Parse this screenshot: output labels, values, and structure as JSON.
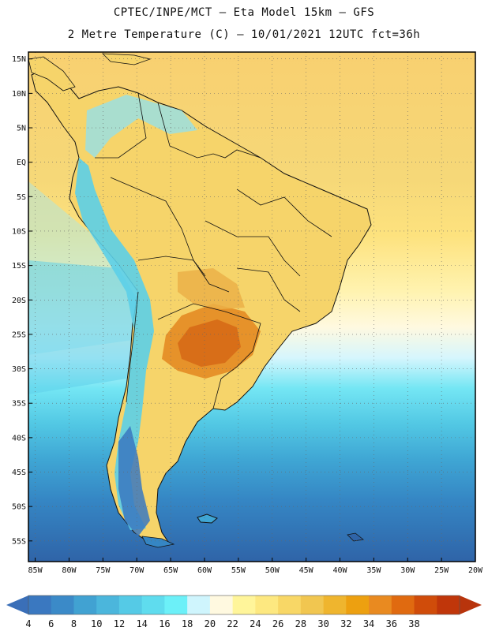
{
  "title": {
    "line1": "CPTEC/INPE/MCT –  Eta Model 15km – GFS",
    "line2": "2 Metre Temperature (C) – 10/01/2021 12UTC fct=36h"
  },
  "map": {
    "lat_labels": [
      "15N",
      "10N",
      "5N",
      "EQ",
      "5S",
      "10S",
      "15S",
      "20S",
      "25S",
      "30S",
      "35S",
      "40S",
      "45S",
      "50S",
      "55S"
    ],
    "lon_labels": [
      "85W",
      "80W",
      "75W",
      "70W",
      "65W",
      "60W",
      "55W",
      "50W",
      "45W",
      "40W",
      "35W",
      "30W",
      "25W",
      "20W"
    ],
    "lat_range": [
      -58,
      16
    ],
    "lon_range": [
      -86,
      -20
    ]
  },
  "colorbar": {
    "labels": [
      "4",
      "6",
      "8",
      "10",
      "12",
      "14",
      "16",
      "18",
      "20",
      "22",
      "24",
      "26",
      "28",
      "30",
      "32",
      "34",
      "36",
      "38"
    ],
    "colors": [
      "#3a78c0",
      "#3b8ac8",
      "#41a2d2",
      "#4bb6dc",
      "#55cae6",
      "#5fdcee",
      "#6cf0f8",
      "#cff5fd",
      "#fff9e0",
      "#fff59a",
      "#fde880",
      "#f8d766",
      "#f1c650",
      "#efb52e",
      "#eda010",
      "#e98a20",
      "#e06a10",
      "#d04c0a",
      "#c0360a"
    ],
    "left_color": "#3a6fb8",
    "right_color": "#b8340c"
  }
}
